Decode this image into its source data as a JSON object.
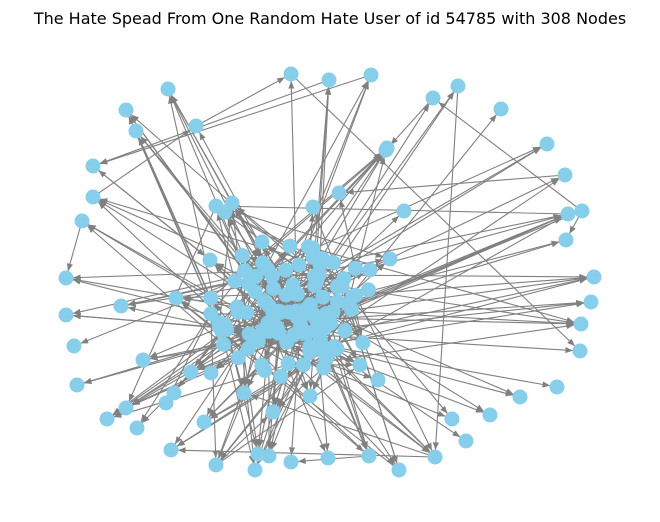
{
  "title": "The Hate Spead From One Random Hate User of id 54785 with 308 Nodes"
}
